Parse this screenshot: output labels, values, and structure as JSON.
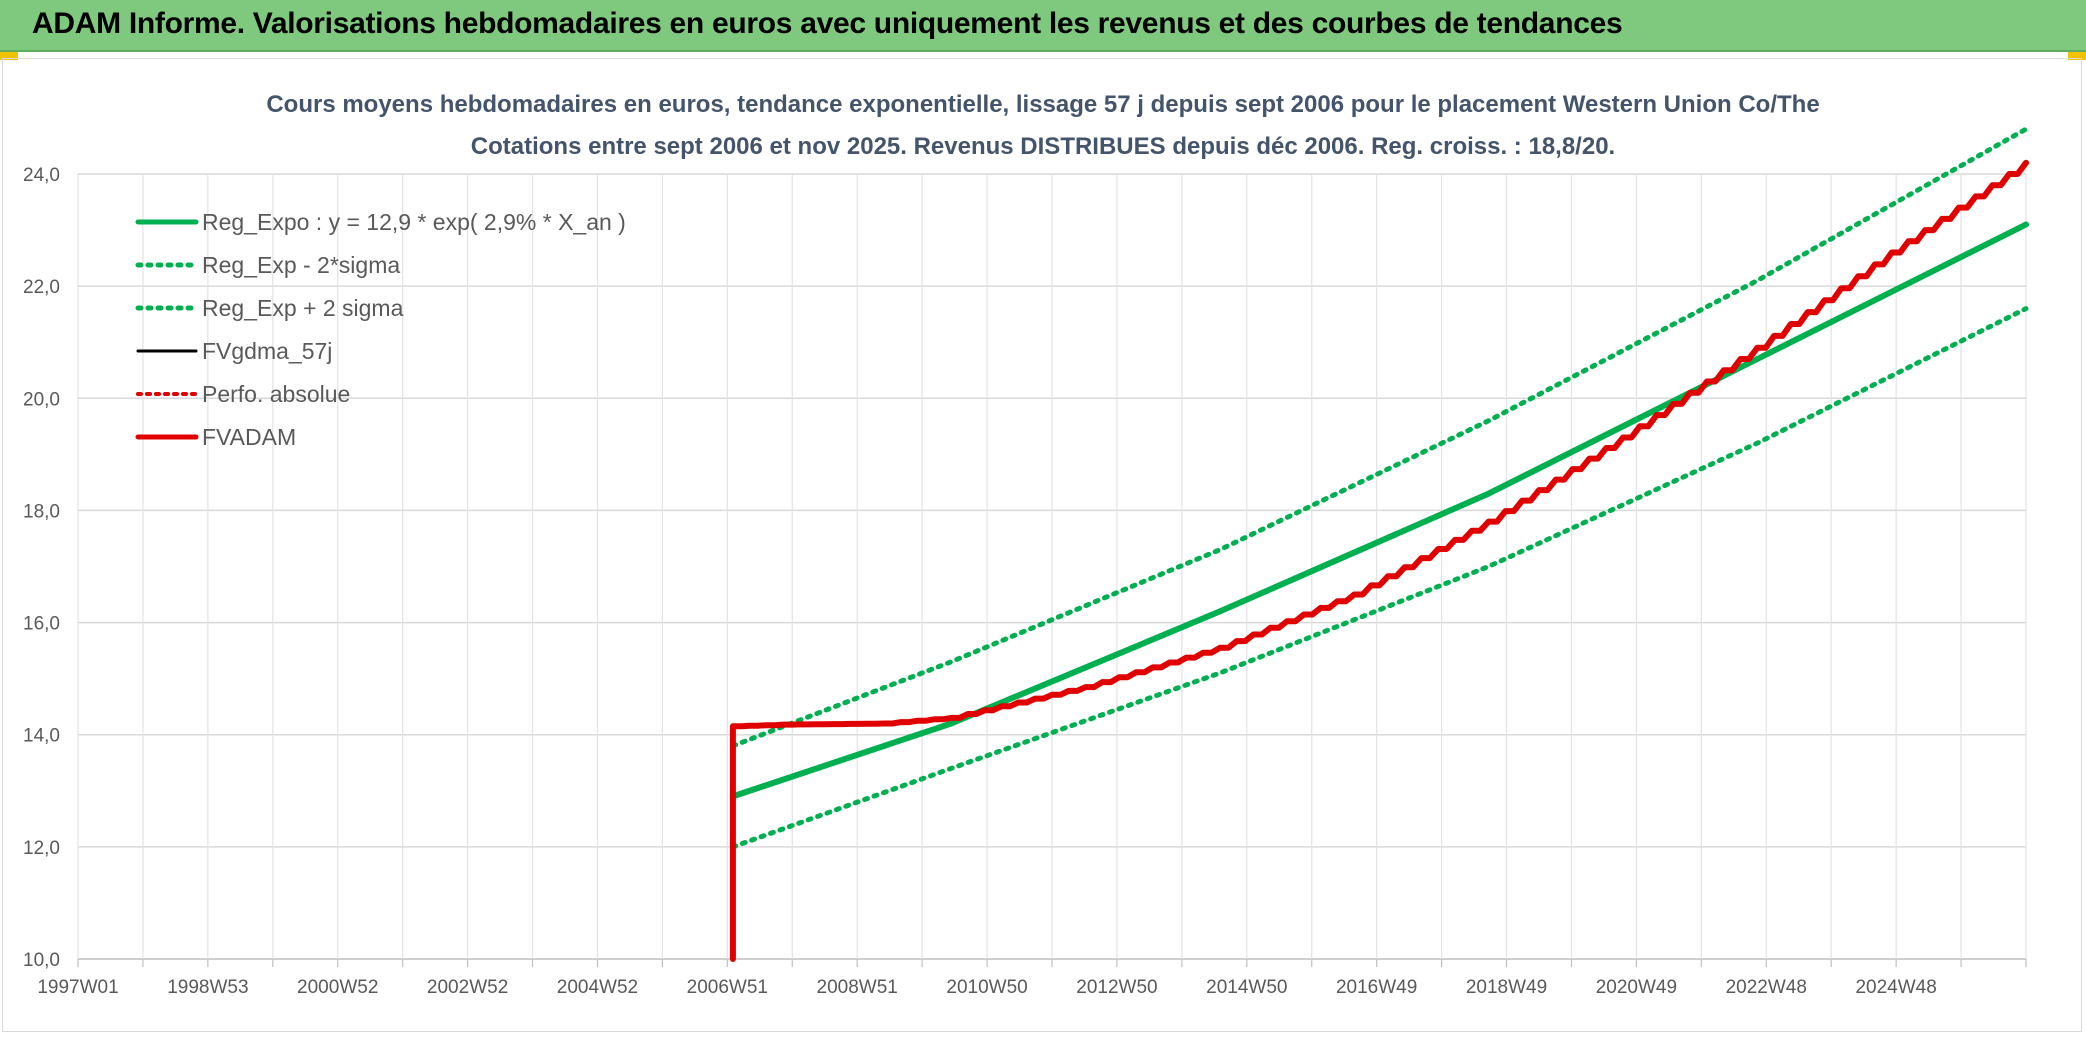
{
  "banner": {
    "title": "ADAM Informe. Valorisations hebdomadaires en euros avec uniquement les revenus et des courbes de tendances"
  },
  "chart_data": {
    "type": "line",
    "title": "Cours moyens hebdomadaires en euros, tendance exponentielle, lissage 57 j depuis sept 2006 pour le placement Western Union Co/The",
    "subtitle": "Cotations entre sept 2006 et nov 2025. Revenus DISTRIBUES depuis déc 2006. Reg. croiss. : 18,8/20.",
    "xlabel": "",
    "ylabel": "",
    "x_range": [
      1997.0,
      2026.0
    ],
    "ylim": [
      10,
      24
    ],
    "y_ticks": [
      "10,0",
      "12,0",
      "14,0",
      "16,0",
      "18,0",
      "20,0",
      "22,0",
      "24,0"
    ],
    "x_tick_labels": [
      "1997W01",
      "1998W53",
      "2000W52",
      "2002W52",
      "2004W52",
      "2006W51",
      "2008W51",
      "2010W50",
      "2012W50",
      "2014W50",
      "2016W49",
      "2018W49",
      "2020W49",
      "2022W48",
      "2024W48"
    ],
    "grid": true,
    "legend_position": "top-left",
    "colors": {
      "green": "#00b050",
      "black": "#000000",
      "red": "#e00000"
    },
    "series": [
      {
        "name": "Reg_Expo : y = 12,9 * exp( 2,9% *  X_an )",
        "style": "solid-green",
        "x": [
          2006.75,
          2010.0,
          2014.0,
          2018.0,
          2022.0,
          2026.0
        ],
        "values": [
          12.9,
          14.2,
          16.2,
          18.3,
          20.7,
          23.1
        ]
      },
      {
        "name": "Reg_Exp - 2*sigma",
        "style": "dotted-green",
        "x": [
          2006.75,
          2010.0,
          2014.0,
          2018.0,
          2022.0,
          2026.0
        ],
        "values": [
          12.0,
          13.4,
          15.1,
          17.0,
          19.2,
          21.6
        ]
      },
      {
        "name": "Reg_Exp + 2 sigma",
        "style": "dotted-green",
        "x": [
          2006.75,
          2010.0,
          2014.0,
          2018.0,
          2022.0,
          2026.0
        ],
        "values": [
          13.8,
          15.3,
          17.3,
          19.6,
          22.1,
          24.8
        ]
      },
      {
        "name": "FVgdma_57j",
        "style": "solid-black",
        "x": [
          2006.75,
          2006.75,
          2007.5,
          2009.0,
          2010.0,
          2012.0,
          2014.0,
          2016.0,
          2018.0,
          2020.0,
          2022.0,
          2024.0,
          2026.0
        ],
        "values": [
          10.0,
          14.15,
          14.18,
          14.2,
          14.3,
          14.85,
          15.55,
          16.5,
          17.8,
          19.3,
          20.9,
          22.6,
          24.2
        ]
      },
      {
        "name": "Perfo. absolue",
        "style": "dotted-red",
        "x": [],
        "values": []
      },
      {
        "name": "FVADAM",
        "style": "solid-red",
        "x": [
          2006.75,
          2006.75,
          2007.5,
          2009.0,
          2010.0,
          2012.0,
          2014.0,
          2016.0,
          2018.0,
          2020.0,
          2022.0,
          2024.0,
          2026.0
        ],
        "values": [
          10.0,
          14.15,
          14.18,
          14.2,
          14.3,
          14.85,
          15.55,
          16.5,
          17.8,
          19.3,
          20.9,
          22.6,
          24.2
        ]
      }
    ]
  }
}
